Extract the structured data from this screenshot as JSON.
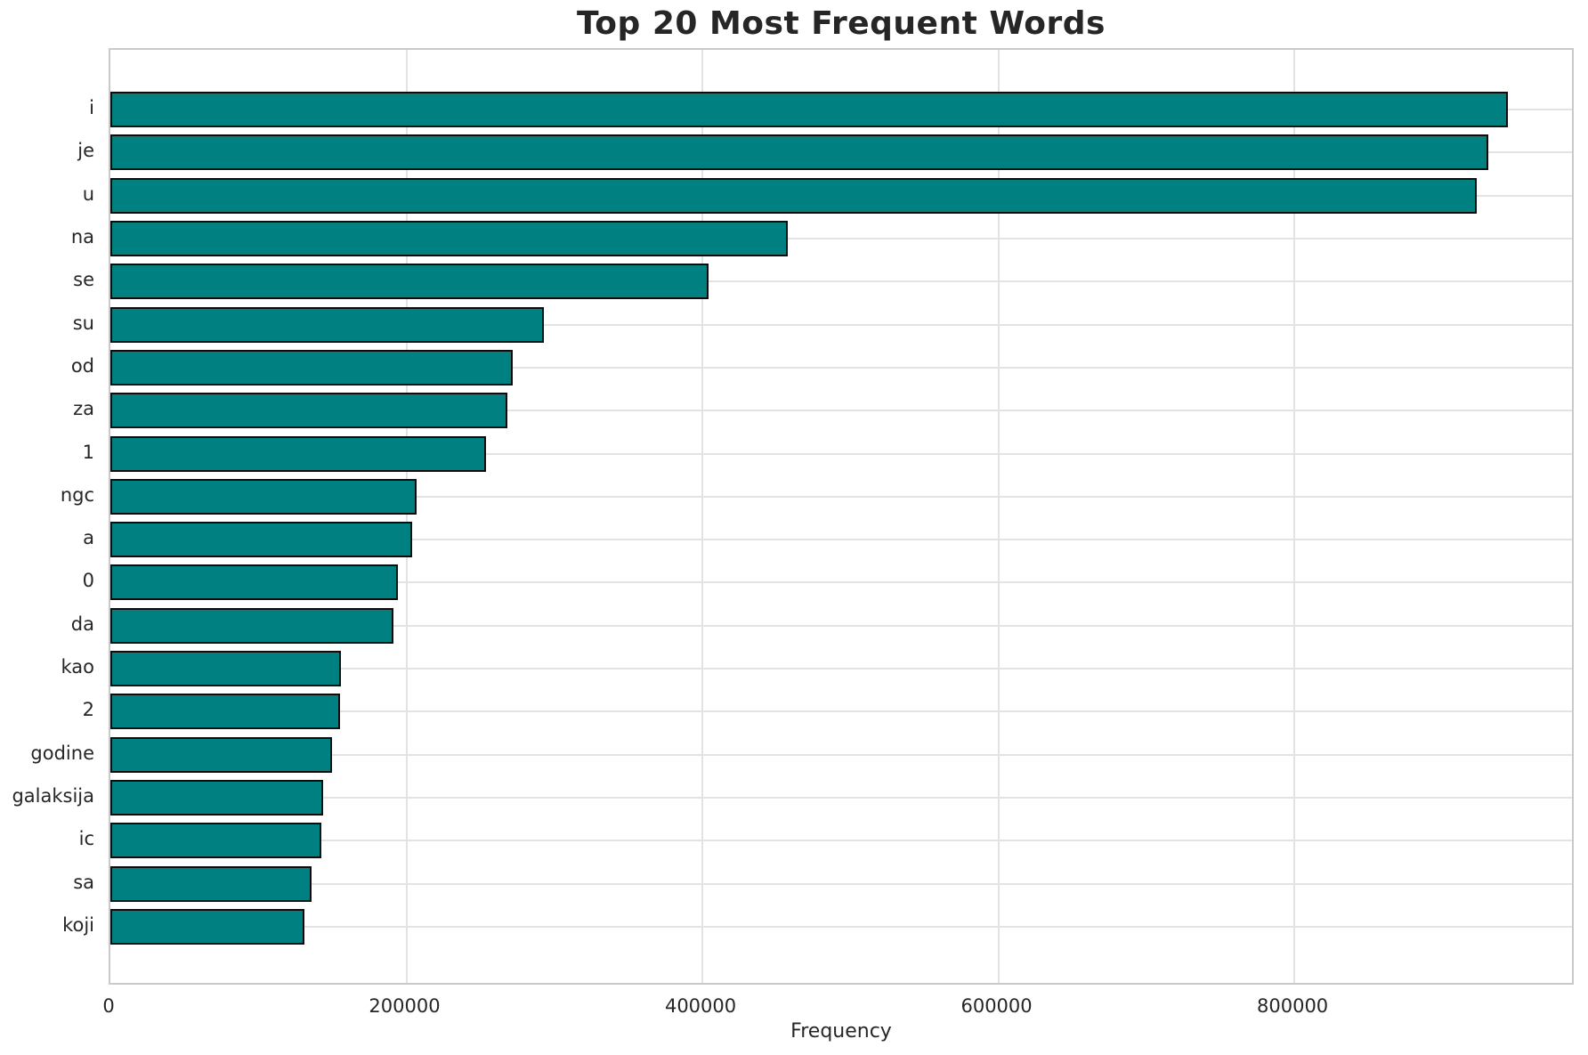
{
  "chart_data": {
    "type": "bar",
    "orientation": "horizontal",
    "title": "Top 20 Most Frequent Words",
    "xlabel": "Frequency",
    "ylabel": "",
    "categories": [
      "i",
      "je",
      "u",
      "na",
      "se",
      "su",
      "od",
      "za",
      "1",
      "ngc",
      "a",
      "0",
      "da",
      "kao",
      "2",
      "godine",
      "galaksija",
      "ic",
      "sa",
      "koji"
    ],
    "values": [
      944000,
      931000,
      923000,
      458000,
      404000,
      293000,
      272000,
      268000,
      254000,
      207000,
      204000,
      194000,
      191000,
      155500,
      155000,
      150000,
      143500,
      142800,
      136000,
      131200
    ],
    "xlim": [
      0,
      990000
    ],
    "x_ticks": [
      0,
      200000,
      400000,
      600000,
      800000
    ],
    "grid": true,
    "legend_position": "none",
    "colors": {
      "bar_fill": "#008080",
      "bar_edge": "#0d0d0d",
      "grid": "#e3e3e3",
      "spine": "#c9c9c9",
      "text": "#262626"
    }
  }
}
